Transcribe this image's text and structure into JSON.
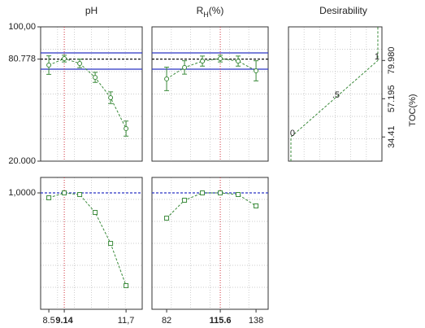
{
  "chart_data": [
    {
      "type": "profile",
      "title": [
        "pH"
      ],
      "x": [
        8.5,
        9.14,
        9.78,
        10.42,
        11.06,
        11.7
      ],
      "values": [
        77.2,
        81.1,
        78.2,
        69.9,
        57.8,
        39.4
      ],
      "errors": [
        5.5,
        2,
        2.5,
        3,
        3.5,
        4.5
      ],
      "color": "#3a8a3a",
      "marker": "circle",
      "xlim": [
        8.16,
        12.37
      ],
      "ylim": [
        20,
        100
      ],
      "yticks": [
        {
          "value": 100,
          "label": "100,00"
        },
        {
          "value": 80.778,
          "label": "80.778"
        },
        {
          "value": 20,
          "label": "20.000"
        }
      ],
      "current_x": 9.14,
      "hlines": [
        {
          "value": 84.5,
          "style": "solid",
          "color": "#2b35c4"
        },
        {
          "value": 80.778,
          "style": "dashed",
          "color": "#111"
        },
        {
          "value": 74.8,
          "style": "solid",
          "color": "#2b35c4"
        }
      ]
    },
    {
      "type": "profile",
      "title": [
        "R",
        "H",
        "(%)"
      ],
      "x": [
        82,
        93.2,
        104.4,
        115.6,
        126.8,
        138
      ],
      "values": [
        69,
        75.8,
        79.6,
        81.1,
        79.6,
        73.8
      ],
      "errors": [
        7,
        4,
        3,
        2,
        3,
        6
      ],
      "color": "#3a8a3a",
      "marker": "circle",
      "xlim": [
        72.8,
        145.6
      ],
      "ylim": [
        20,
        100
      ],
      "current_x": 115.6,
      "hlines": [
        {
          "value": 84.5,
          "style": "solid",
          "color": "#2b35c4"
        },
        {
          "value": 80.778,
          "style": "dashed",
          "color": "#111"
        },
        {
          "value": 74.8,
          "style": "solid",
          "color": "#2b35c4"
        }
      ]
    },
    {
      "type": "desirability",
      "title": [
        "Desirability"
      ],
      "x": [
        0,
        0,
        1,
        1
      ],
      "values": [
        20,
        34.41,
        79.98,
        100
      ],
      "color": "#3a8a3a",
      "xlim": [
        -0.028,
        1.047
      ],
      "ylim": [
        20,
        100
      ],
      "y2ticks": [
        34.41,
        57.195,
        {
          "value": 79.98,
          "label": "79.980"
        }
      ],
      "y2label": "TOC(%)",
      "markers": {
        "x": [
          0,
          0.5,
          1
        ],
        "y": [
          34.41,
          57.195,
          79.98
        ],
        "labels": [
          "0",
          ".5",
          "1"
        ]
      }
    },
    {
      "type": "profile",
      "x": [
        8.5,
        9.14,
        9.78,
        10.42,
        11.06,
        11.7
      ],
      "values": [
        0.958,
        1,
        0.986,
        0.832,
        0.566,
        0.203
      ],
      "color": "#3a8a3a",
      "marker": "square",
      "xlim": [
        8.16,
        12.37
      ],
      "ylim": [
        0,
        1.133
      ],
      "yticks": [
        {
          "value": 1,
          "label": "1,0000"
        }
      ],
      "xticks": [
        8.5,
        9.14,
        {
          "value": 11.7,
          "label": "11,7"
        }
      ],
      "current_x": 9.14,
      "hlines": [
        {
          "value": 1,
          "style": "dashed",
          "color": "#2b35c4"
        }
      ]
    },
    {
      "type": "profile",
      "x": [
        82,
        93.2,
        104.4,
        115.6,
        126.8,
        138
      ],
      "values": [
        0.783,
        0.937,
        1,
        1,
        0.986,
        0.888
      ],
      "color": "#3a8a3a",
      "marker": "square",
      "xlim": [
        72.8,
        145.6
      ],
      "ylim": [
        0,
        1.133
      ],
      "xticks": [
        82,
        115.6,
        138
      ],
      "current_x": 115.6,
      "hlines": [
        {
          "value": 1,
          "style": "dashed",
          "color": "#2b35c4"
        }
      ]
    }
  ]
}
